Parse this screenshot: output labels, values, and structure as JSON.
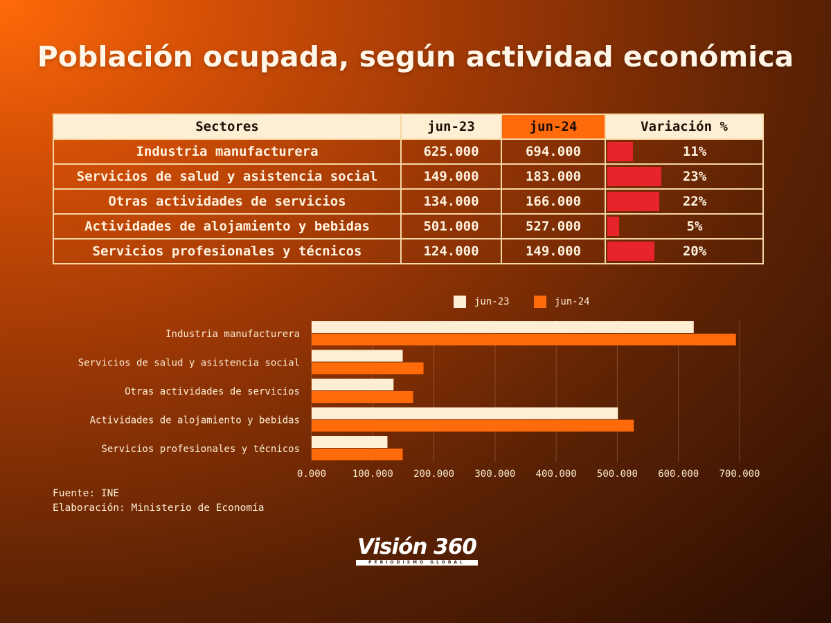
{
  "title": "Población ocupada, según actividad económica",
  "table": {
    "headers": [
      "Sectores",
      "jun-23",
      "jun-24",
      "Variación %"
    ],
    "rows": [
      {
        "sector": "Industria manufacturera",
        "jun23": "625.000",
        "jun24": "694.000",
        "variacion": "11%",
        "variacion_value": 11
      },
      {
        "sector": "Servicios de salud y asistencia social",
        "jun23": "149.000",
        "jun24": "183.000",
        "variacion": "23%",
        "variacion_value": 23
      },
      {
        "sector": "Otras actividades de servicios",
        "jun23": "134.000",
        "jun24": "166.000",
        "variacion": "22%",
        "variacion_value": 22
      },
      {
        "sector": "Actividades de alojamiento y bebidas",
        "jun23": "501.000",
        "jun24": "527.000",
        "variacion": "5%",
        "variacion_value": 5
      },
      {
        "sector": "Servicios profesionales y técnicos",
        "jun23": "124.000",
        "jun24": "149.000",
        "variacion": "20%",
        "variacion_value": 20
      }
    ]
  },
  "chart_data": {
    "type": "bar",
    "orientation": "horizontal",
    "categories": [
      "Industria manufacturera",
      "Servicios de salud y asistencia social",
      "Otras actividades de servicios",
      "Actividades de alojamiento y bebidas",
      "Servicios profesionales y técnicos"
    ],
    "series": [
      {
        "name": "jun-23",
        "values": [
          625000,
          149000,
          134000,
          501000,
          124000
        ],
        "color": "#fdeed4"
      },
      {
        "name": "jun-24",
        "values": [
          694000,
          183000,
          166000,
          527000,
          149000
        ],
        "color": "#ff6a0a"
      }
    ],
    "xlim": [
      0,
      700000
    ],
    "ticks": [
      "0.000",
      "100.000",
      "200.000",
      "300.000",
      "400.000",
      "500.000",
      "600.000",
      "700.000"
    ],
    "tick_values": [
      0,
      100000,
      200000,
      300000,
      400000,
      500000,
      600000,
      700000
    ],
    "legend_position": "top",
    "grid": true
  },
  "footer": {
    "source": "Fuente: INE",
    "elaboration": "Elaboración: Ministerio de Economía"
  },
  "logo": {
    "text": "Visión 360",
    "sub": "PERIODISMO GLOBAL"
  },
  "colors": {
    "variation_bar": "#e8242b",
    "header_bg": "#fdeed4",
    "header_highlight": "#ff6a0a",
    "border": "#f6d7a6"
  }
}
